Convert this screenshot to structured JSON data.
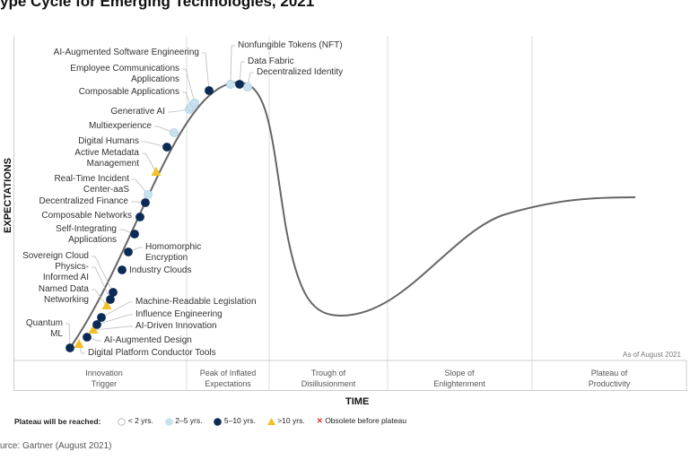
{
  "title": "ype Cycle for Emerging Technologies, 2021",
  "source": "urce: Gartner (August 2021)",
  "colors": {
    "lt2": "#ffffff",
    "y2_5": "#c9e2f0",
    "y5_10": "#0b2a55",
    "gt10": "#f2bf27",
    "obsolete": "#d9312b",
    "curve": "#666666"
  },
  "chart_data": {
    "type": "hype-cycle",
    "ylabel": "EXPECTATIONS",
    "xlabel": "TIME",
    "as_of": "As of August 2021",
    "phases": [
      "Innovation\nTrigger",
      "Peak of Inflated\nExpectations",
      "Trough of\nDisillusionment",
      "Slope of\nEnlightenment",
      "Plateau of\nProductivity"
    ],
    "legend": {
      "title": "Plateau will be reached:",
      "items": [
        {
          "label": "< 2 yrs.",
          "status": "lt2"
        },
        {
          "label": "2–5 yrs.",
          "status": "y2_5"
        },
        {
          "label": "5–10 yrs.",
          "status": "y5_10"
        },
        {
          "label": ">10 yrs.",
          "status": "gt10"
        },
        {
          "label": "Obsolete before plateau",
          "status": "obsolete"
        }
      ]
    },
    "points": [
      {
        "name": "Quantum\nML",
        "status": "y5_10"
      },
      {
        "name": "Digital Platform Conductor Tools",
        "status": "gt10"
      },
      {
        "name": "AI-Augmented Design",
        "status": "y5_10"
      },
      {
        "name": "AI-Driven Innovation",
        "status": "gt10"
      },
      {
        "name": "Influence Engineering",
        "status": "y5_10"
      },
      {
        "name": "Machine-Readable Legislation",
        "status": "y5_10"
      },
      {
        "name": "Named Data\nNetworking",
        "status": "gt10"
      },
      {
        "name": "Physics-\nInformed AI",
        "status": "y5_10"
      },
      {
        "name": "Sovereign Cloud",
        "status": "y5_10"
      },
      {
        "name": "Industry Clouds",
        "status": "y5_10"
      },
      {
        "name": "Homomorphic\nEncryption",
        "status": "y5_10"
      },
      {
        "name": "Self-Integrating\nApplications",
        "status": "y5_10"
      },
      {
        "name": "Composable Networks",
        "status": "y5_10"
      },
      {
        "name": "Decentralized Finance",
        "status": "y5_10"
      },
      {
        "name": "Real-Time Incident\nCenter-aaS",
        "status": "y2_5"
      },
      {
        "name": "Active Metadata\nManagement",
        "status": "gt10"
      },
      {
        "name": "Digital Humans",
        "status": "y5_10"
      },
      {
        "name": "Multiexperience",
        "status": "y2_5"
      },
      {
        "name": "Generative AI",
        "status": "y2_5"
      },
      {
        "name": "Composable Applications",
        "status": "y2_5"
      },
      {
        "name": "Employee Communications\nApplications",
        "status": "y2_5"
      },
      {
        "name": "AI-Augmented Software Engineering",
        "status": "y5_10"
      },
      {
        "name": "Nonfungible Tokens (NFT)",
        "status": "y2_5"
      },
      {
        "name": "Data Fabric",
        "status": "y5_10"
      },
      {
        "name": "Decentralized Identity",
        "status": "y2_5"
      }
    ]
  }
}
